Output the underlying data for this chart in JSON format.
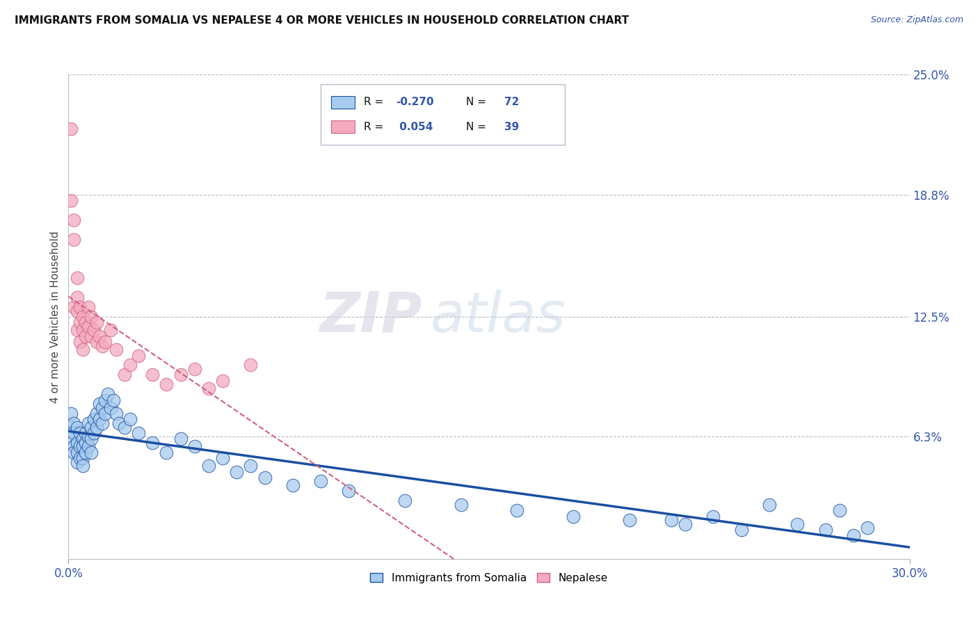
{
  "title": "IMMIGRANTS FROM SOMALIA VS NEPALESE 4 OR MORE VEHICLES IN HOUSEHOLD CORRELATION CHART",
  "source": "Source: ZipAtlas.com",
  "ylabel": "4 or more Vehicles in Household",
  "xlim": [
    0.0,
    0.3
  ],
  "ylim": [
    0.0,
    0.25
  ],
  "ytick_right_labels": [
    "25.0%",
    "18.8%",
    "12.5%",
    "6.3%"
  ],
  "ytick_right_values": [
    0.25,
    0.188,
    0.125,
    0.063
  ],
  "somalia_color": "#A8CCF0",
  "nepalese_color": "#F4AABF",
  "somalia_line_color": "#1A4FA0",
  "nepalese_line_color": "#D06080",
  "legend_somalia": "Immigrants from Somalia",
  "legend_nepalese": "Nepalese",
  "somalia_x": [
    0.001,
    0.001,
    0.001,
    0.002,
    0.002,
    0.002,
    0.002,
    0.003,
    0.003,
    0.003,
    0.003,
    0.004,
    0.004,
    0.004,
    0.005,
    0.005,
    0.005,
    0.005,
    0.006,
    0.006,
    0.006,
    0.007,
    0.007,
    0.007,
    0.008,
    0.008,
    0.008,
    0.009,
    0.009,
    0.01,
    0.01,
    0.011,
    0.011,
    0.012,
    0.012,
    0.013,
    0.013,
    0.014,
    0.015,
    0.016,
    0.017,
    0.018,
    0.02,
    0.022,
    0.025,
    0.03,
    0.035,
    0.04,
    0.045,
    0.05,
    0.055,
    0.06,
    0.065,
    0.07,
    0.08,
    0.09,
    0.1,
    0.12,
    0.14,
    0.16,
    0.18,
    0.2,
    0.22,
    0.24,
    0.26,
    0.27,
    0.28,
    0.285,
    0.275,
    0.25,
    0.23,
    0.215
  ],
  "somalia_y": [
    0.075,
    0.068,
    0.06,
    0.07,
    0.065,
    0.058,
    0.055,
    0.068,
    0.06,
    0.055,
    0.05,
    0.065,
    0.058,
    0.052,
    0.062,
    0.058,
    0.052,
    0.048,
    0.065,
    0.06,
    0.055,
    0.07,
    0.063,
    0.058,
    0.068,
    0.062,
    0.055,
    0.072,
    0.065,
    0.075,
    0.068,
    0.08,
    0.072,
    0.078,
    0.07,
    0.082,
    0.075,
    0.085,
    0.078,
    0.082,
    0.075,
    0.07,
    0.068,
    0.072,
    0.065,
    0.06,
    0.055,
    0.062,
    0.058,
    0.048,
    0.052,
    0.045,
    0.048,
    0.042,
    0.038,
    0.04,
    0.035,
    0.03,
    0.028,
    0.025,
    0.022,
    0.02,
    0.018,
    0.015,
    0.018,
    0.015,
    0.012,
    0.016,
    0.025,
    0.028,
    0.022,
    0.02
  ],
  "nepalese_x": [
    0.001,
    0.001,
    0.002,
    0.002,
    0.002,
    0.003,
    0.003,
    0.003,
    0.003,
    0.004,
    0.004,
    0.004,
    0.005,
    0.005,
    0.005,
    0.006,
    0.006,
    0.007,
    0.007,
    0.008,
    0.008,
    0.009,
    0.01,
    0.01,
    0.011,
    0.012,
    0.013,
    0.015,
    0.017,
    0.02,
    0.022,
    0.025,
    0.03,
    0.035,
    0.04,
    0.045,
    0.05,
    0.055,
    0.065
  ],
  "nepalese_y": [
    0.222,
    0.185,
    0.175,
    0.165,
    0.13,
    0.145,
    0.135,
    0.128,
    0.118,
    0.13,
    0.122,
    0.112,
    0.125,
    0.118,
    0.108,
    0.122,
    0.115,
    0.13,
    0.12,
    0.125,
    0.115,
    0.118,
    0.122,
    0.112,
    0.115,
    0.11,
    0.112,
    0.118,
    0.108,
    0.095,
    0.1,
    0.105,
    0.095,
    0.09,
    0.095,
    0.098,
    0.088,
    0.092,
    0.1
  ]
}
